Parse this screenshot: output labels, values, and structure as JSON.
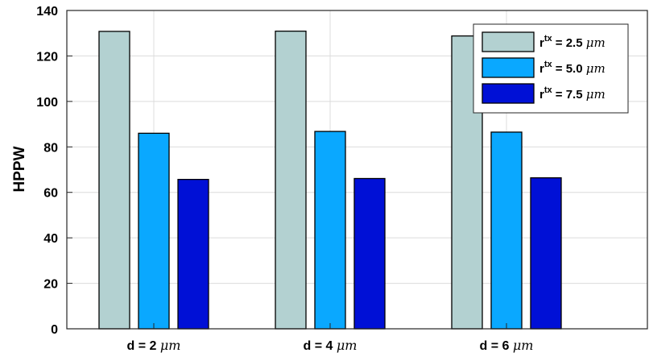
{
  "chart_data": {
    "type": "bar",
    "title": "",
    "xlabel": "",
    "ylabel": "HPPW",
    "categories": [
      {
        "prefix": "d = ",
        "value": "2",
        "unit": "μm"
      },
      {
        "prefix": "d = ",
        "value": "4",
        "unit": "μm"
      },
      {
        "prefix": "d = ",
        "value": "6",
        "unit": "μm"
      }
    ],
    "series": [
      {
        "name": "r^tx = 2.5 μm",
        "base": "r",
        "sup": "tx",
        "rest": " = 2.5 ",
        "unit": "μm",
        "color": "#b3d1d1",
        "values": [
          130.8,
          130.9,
          128.8
        ]
      },
      {
        "name": "r^tx = 5.0 μm",
        "base": "r",
        "sup": "tx",
        "rest": " = 5.0 ",
        "unit": "μm",
        "color": "#0aa8ff",
        "values": [
          86.0,
          86.8,
          86.5
        ]
      },
      {
        "name": "r^tx = 7.5 μm",
        "base": "r",
        "sup": "tx",
        "rest": " = 7.5 ",
        "unit": "μm",
        "color": "#0010d6",
        "values": [
          65.7,
          66.1,
          66.4
        ]
      }
    ],
    "ylim": [
      0,
      140
    ],
    "yticks": [
      0,
      20,
      40,
      60,
      80,
      100,
      120,
      140
    ],
    "grid": true,
    "legend_position": "top-right"
  }
}
